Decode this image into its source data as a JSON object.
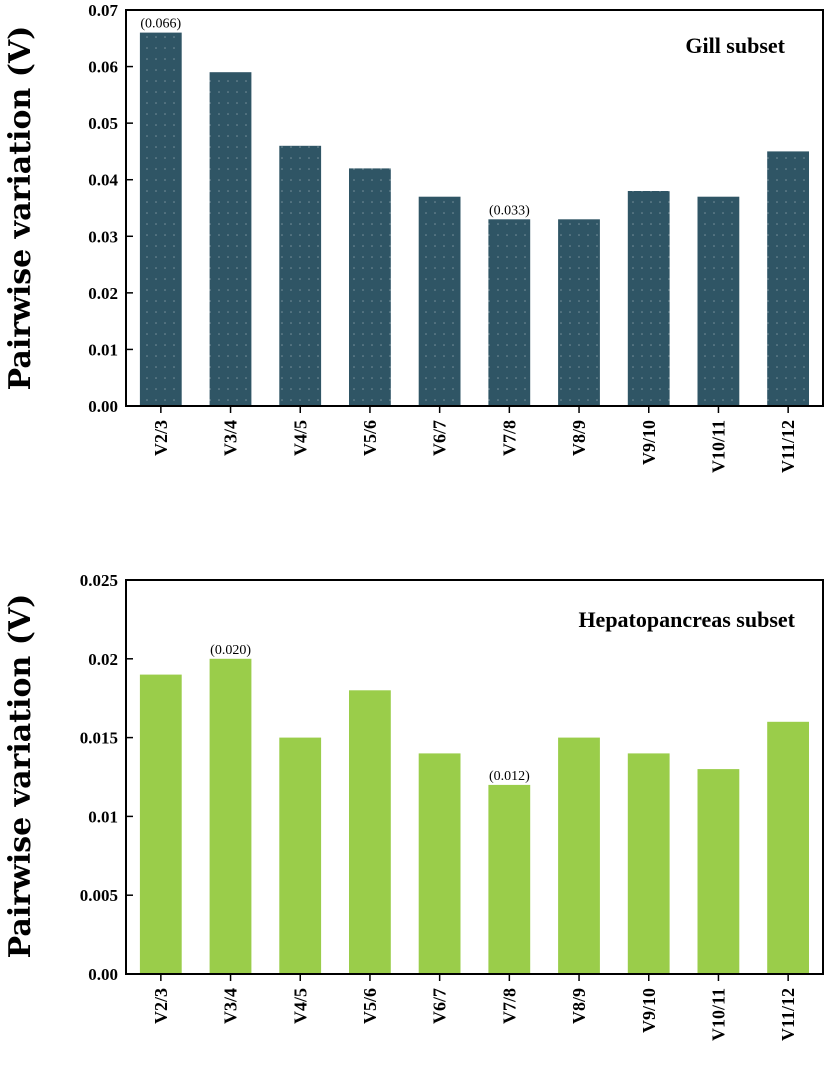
{
  "chart_data": [
    {
      "type": "bar",
      "title": "",
      "subset_label": "Gill subset",
      "ylabel": "Pairwise variation (V)",
      "xlabel": "",
      "categories": [
        "V2/3",
        "V3/4",
        "V4/5",
        "V5/6",
        "V6/7",
        "V7/8",
        "V8/9",
        "V9/10",
        "V10/11",
        "V11/12"
      ],
      "values": [
        0.066,
        0.059,
        0.046,
        0.042,
        0.037,
        0.033,
        0.033,
        0.038,
        0.037,
        0.045
      ],
      "ylim": [
        0,
        0.07
      ],
      "yticks": [
        "0.00",
        "0.01",
        "0.02",
        "0.03",
        "0.04",
        "0.05",
        "0.06",
        "0.07"
      ],
      "bar_color": "#2f5565",
      "annotations": [
        {
          "category": "V2/3",
          "text": "(0.066)"
        },
        {
          "category": "V7/8",
          "text": "(0.033)"
        }
      ],
      "grid": false
    },
    {
      "type": "bar",
      "title": "",
      "subset_label": "Hepatopancreas subset",
      "ylabel": "Pairwise variation (V)",
      "xlabel": "",
      "categories": [
        "V2/3",
        "V3/4",
        "V4/5",
        "V5/6",
        "V6/7",
        "V7/8",
        "V8/9",
        "V9/10",
        "V10/11",
        "V11/12"
      ],
      "values": [
        0.019,
        0.02,
        0.015,
        0.018,
        0.014,
        0.012,
        0.015,
        0.014,
        0.013,
        0.016
      ],
      "ylim": [
        0,
        0.025
      ],
      "yticks": [
        "0.00",
        "0.005",
        "0.01",
        "0.015",
        "0.02",
        "0.025"
      ],
      "bar_color": "#9acd4a",
      "annotations": [
        {
          "category": "V3/4",
          "text": "(0.020)"
        },
        {
          "category": "V7/8",
          "text": "(0.012)"
        }
      ],
      "grid": false
    }
  ]
}
